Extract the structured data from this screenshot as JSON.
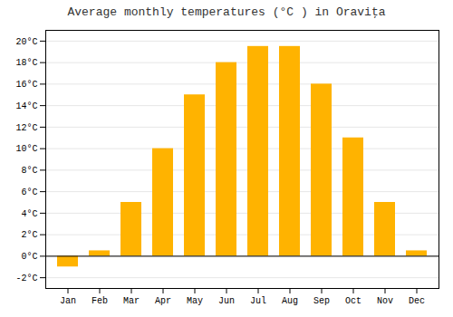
{
  "chart_data": {
    "type": "bar",
    "title": "Average monthly temperatures (°C ) in Oraviţa",
    "categories": [
      "Jan",
      "Feb",
      "Mar",
      "Apr",
      "May",
      "Jun",
      "Jul",
      "Aug",
      "Sep",
      "Oct",
      "Nov",
      "Dec"
    ],
    "values": [
      -1.0,
      0.5,
      5.0,
      10.0,
      15.0,
      18.0,
      19.5,
      19.5,
      16.0,
      11.0,
      5.0,
      0.5
    ],
    "color": "#FFB300",
    "ylim": [
      -3,
      21
    ],
    "yticks": [
      {
        "value": -2,
        "label": "-2°C"
      },
      {
        "value": 0,
        "label": "0°C"
      },
      {
        "value": 2,
        "label": "2°C"
      },
      {
        "value": 4,
        "label": "4°C"
      },
      {
        "value": 6,
        "label": "6°C"
      },
      {
        "value": 8,
        "label": "8°C"
      },
      {
        "value": 10,
        "label": "10°C"
      },
      {
        "value": 12,
        "label": "12°C"
      },
      {
        "value": 14,
        "label": "14°C"
      },
      {
        "value": 16,
        "label": "16°C"
      },
      {
        "value": 18,
        "label": "18°C"
      },
      {
        "value": 20,
        "label": "20°C"
      }
    ],
    "grid": true
  }
}
